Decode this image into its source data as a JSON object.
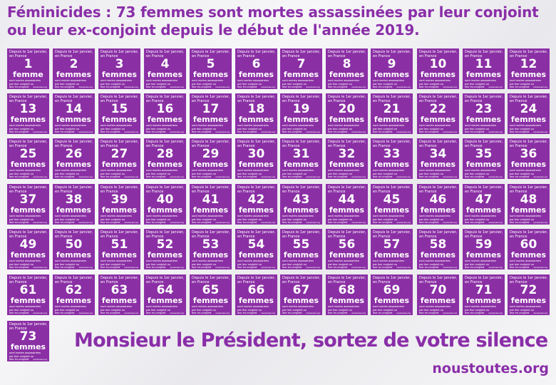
{
  "headline": "Féminicides : 73 femmes sont mortes assassinées par leur conjoint ou leur ex-conjoint depuis le début de l'année 2019.",
  "poster": {
    "intro": "Depuis le 1er janvier,\nen France",
    "unit_singular": "femme",
    "unit_plural": "femmes",
    "outro": "sont mortes assassinées\npar leur conjoint ou\nleur ex-conjoint.",
    "site": "noustoutes.org",
    "color": "#8b2fa5",
    "count": 73
  },
  "slogan": "Monsieur le Président, sortez de votre silence !",
  "footer_url": "noustoutes.org",
  "accent_color": "#8a2ea8"
}
